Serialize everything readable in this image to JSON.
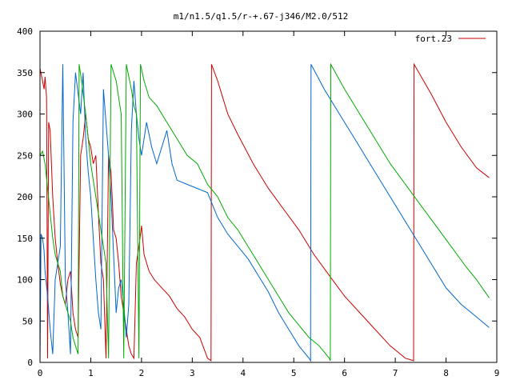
{
  "chart_data": {
    "type": "line",
    "title": "m1/n1.5/q1.5/r-+.67-j346/M2.0/512",
    "xlabel": "",
    "ylabel": "",
    "xlim": [
      0,
      9
    ],
    "ylim": [
      0,
      400
    ],
    "xticks": [
      0,
      1,
      2,
      3,
      4,
      5,
      6,
      7,
      8,
      9
    ],
    "yticks": [
      0,
      50,
      100,
      150,
      200,
      250,
      300,
      350,
      400
    ],
    "legend": {
      "position": "top-right",
      "entries": [
        "fort.23"
      ]
    },
    "grid": false,
    "series": [
      {
        "name": "fort.23",
        "color": "#cc0000",
        "points": [
          [
            0.0,
            355
          ],
          [
            0.05,
            340
          ],
          [
            0.08,
            330
          ],
          [
            0.1,
            345
          ],
          [
            0.13,
            320
          ],
          [
            0.15,
            5
          ],
          [
            0.17,
            290
          ],
          [
            0.2,
            280
          ],
          [
            0.25,
            200
          ],
          [
            0.3,
            150
          ],
          [
            0.35,
            120
          ],
          [
            0.4,
            95
          ],
          [
            0.45,
            80
          ],
          [
            0.5,
            70
          ],
          [
            0.55,
            100
          ],
          [
            0.6,
            110
          ],
          [
            0.65,
            60
          ],
          [
            0.7,
            40
          ],
          [
            0.75,
            30
          ],
          [
            0.8,
            250
          ],
          [
            0.85,
            270
          ],
          [
            0.9,
            300
          ],
          [
            0.95,
            270
          ],
          [
            1.0,
            260
          ],
          [
            1.05,
            240
          ],
          [
            1.1,
            250
          ],
          [
            1.15,
            180
          ],
          [
            1.2,
            120
          ],
          [
            1.25,
            100
          ],
          [
            1.3,
            5
          ],
          [
            1.35,
            250
          ],
          [
            1.4,
            230
          ],
          [
            1.45,
            160
          ],
          [
            1.5,
            150
          ],
          [
            1.55,
            120
          ],
          [
            1.6,
            80
          ],
          [
            1.65,
            60
          ],
          [
            1.7,
            40
          ],
          [
            1.75,
            20
          ],
          [
            1.8,
            10
          ],
          [
            1.85,
            5
          ],
          [
            1.9,
            120
          ],
          [
            1.95,
            140
          ],
          [
            2.0,
            165
          ],
          [
            2.05,
            130
          ],
          [
            2.15,
            110
          ],
          [
            2.25,
            100
          ],
          [
            2.4,
            90
          ],
          [
            2.55,
            80
          ],
          [
            2.7,
            65
          ],
          [
            2.85,
            55
          ],
          [
            3.0,
            40
          ],
          [
            3.15,
            30
          ],
          [
            3.3,
            5
          ],
          [
            3.37,
            2
          ],
          [
            3.38,
            360
          ],
          [
            3.5,
            340
          ],
          [
            3.6,
            320
          ],
          [
            3.7,
            300
          ],
          [
            3.9,
            275
          ],
          [
            4.2,
            240
          ],
          [
            4.5,
            210
          ],
          [
            4.8,
            185
          ],
          [
            5.1,
            160
          ],
          [
            5.4,
            130
          ],
          [
            5.7,
            105
          ],
          [
            6.0,
            80
          ],
          [
            6.3,
            60
          ],
          [
            6.6,
            40
          ],
          [
            6.9,
            20
          ],
          [
            7.2,
            5
          ],
          [
            7.36,
            2
          ],
          [
            7.37,
            360
          ],
          [
            7.7,
            325
          ],
          [
            8.0,
            290
          ],
          [
            8.3,
            260
          ],
          [
            8.6,
            235
          ],
          [
            8.85,
            223
          ]
        ]
      },
      {
        "name": "",
        "color": "#0066cc",
        "points": [
          [
            0.0,
            0
          ],
          [
            0.02,
            155
          ],
          [
            0.05,
            150
          ],
          [
            0.08,
            135
          ],
          [
            0.1,
            110
          ],
          [
            0.15,
            80
          ],
          [
            0.2,
            40
          ],
          [
            0.25,
            10
          ],
          [
            0.3,
            100
          ],
          [
            0.35,
            120
          ],
          [
            0.4,
            140
          ],
          [
            0.45,
            360
          ],
          [
            0.5,
            100
          ],
          [
            0.55,
            60
          ],
          [
            0.6,
            10
          ],
          [
            0.65,
            290
          ],
          [
            0.7,
            350
          ],
          [
            0.8,
            300
          ],
          [
            0.85,
            350
          ],
          [
            0.9,
            270
          ],
          [
            0.95,
            230
          ],
          [
            1.0,
            200
          ],
          [
            1.05,
            150
          ],
          [
            1.1,
            100
          ],
          [
            1.15,
            60
          ],
          [
            1.2,
            40
          ],
          [
            1.25,
            330
          ],
          [
            1.3,
            290
          ],
          [
            1.35,
            250
          ],
          [
            1.4,
            200
          ],
          [
            1.45,
            130
          ],
          [
            1.5,
            60
          ],
          [
            1.55,
            90
          ],
          [
            1.6,
            100
          ],
          [
            1.65,
            70
          ],
          [
            1.7,
            30
          ],
          [
            1.75,
            70
          ],
          [
            1.8,
            280
          ],
          [
            1.85,
            340
          ],
          [
            1.9,
            300
          ],
          [
            1.95,
            270
          ],
          [
            2.0,
            250
          ],
          [
            2.1,
            290
          ],
          [
            2.2,
            260
          ],
          [
            2.3,
            240
          ],
          [
            2.5,
            280
          ],
          [
            2.6,
            240
          ],
          [
            2.7,
            220
          ],
          [
            2.9,
            215
          ],
          [
            3.1,
            210
          ],
          [
            3.3,
            205
          ],
          [
            3.5,
            175
          ],
          [
            3.7,
            155
          ],
          [
            3.9,
            140
          ],
          [
            4.1,
            125
          ],
          [
            4.3,
            105
          ],
          [
            4.5,
            85
          ],
          [
            4.7,
            60
          ],
          [
            4.9,
            40
          ],
          [
            5.1,
            20
          ],
          [
            5.3,
            5
          ],
          [
            5.33,
            2
          ],
          [
            5.34,
            360
          ],
          [
            5.6,
            330
          ],
          [
            5.9,
            300
          ],
          [
            6.2,
            270
          ],
          [
            6.5,
            240
          ],
          [
            6.8,
            210
          ],
          [
            7.1,
            180
          ],
          [
            7.4,
            150
          ],
          [
            7.7,
            120
          ],
          [
            8.0,
            90
          ],
          [
            8.3,
            70
          ],
          [
            8.6,
            55
          ],
          [
            8.85,
            42
          ]
        ]
      },
      {
        "name": "",
        "color": "#00aa00",
        "points": [
          [
            0.0,
            250
          ],
          [
            0.05,
            255
          ],
          [
            0.1,
            240
          ],
          [
            0.15,
            210
          ],
          [
            0.2,
            180
          ],
          [
            0.25,
            150
          ],
          [
            0.3,
            130
          ],
          [
            0.35,
            120
          ],
          [
            0.4,
            110
          ],
          [
            0.45,
            80
          ],
          [
            0.5,
            70
          ],
          [
            0.55,
            60
          ],
          [
            0.6,
            50
          ],
          [
            0.65,
            30
          ],
          [
            0.7,
            20
          ],
          [
            0.75,
            10
          ],
          [
            0.77,
            360
          ],
          [
            0.82,
            340
          ],
          [
            0.9,
            300
          ],
          [
            1.0,
            240
          ],
          [
            1.1,
            200
          ],
          [
            1.2,
            160
          ],
          [
            1.3,
            120
          ],
          [
            1.35,
            5
          ],
          [
            1.4,
            360
          ],
          [
            1.5,
            340
          ],
          [
            1.55,
            320
          ],
          [
            1.6,
            300
          ],
          [
            1.65,
            5
          ],
          [
            1.7,
            360
          ],
          [
            1.8,
            330
          ],
          [
            1.85,
            310
          ],
          [
            1.9,
            300
          ],
          [
            1.95,
            5
          ],
          [
            1.98,
            360
          ],
          [
            2.05,
            340
          ],
          [
            2.15,
            320
          ],
          [
            2.3,
            310
          ],
          [
            2.5,
            290
          ],
          [
            2.7,
            270
          ],
          [
            2.9,
            250
          ],
          [
            3.1,
            240
          ],
          [
            3.3,
            215
          ],
          [
            3.5,
            200
          ],
          [
            3.7,
            175
          ],
          [
            3.9,
            160
          ],
          [
            4.1,
            140
          ],
          [
            4.3,
            120
          ],
          [
            4.5,
            100
          ],
          [
            4.7,
            80
          ],
          [
            4.9,
            60
          ],
          [
            5.1,
            45
          ],
          [
            5.3,
            30
          ],
          [
            5.5,
            20
          ],
          [
            5.7,
            5
          ],
          [
            5.72,
            2
          ],
          [
            5.73,
            360
          ],
          [
            6.0,
            330
          ],
          [
            6.3,
            300
          ],
          [
            6.6,
            270
          ],
          [
            6.9,
            240
          ],
          [
            7.2,
            215
          ],
          [
            7.5,
            190
          ],
          [
            7.8,
            165
          ],
          [
            8.1,
            140
          ],
          [
            8.4,
            115
          ],
          [
            8.6,
            100
          ],
          [
            8.85,
            78
          ]
        ]
      }
    ]
  }
}
